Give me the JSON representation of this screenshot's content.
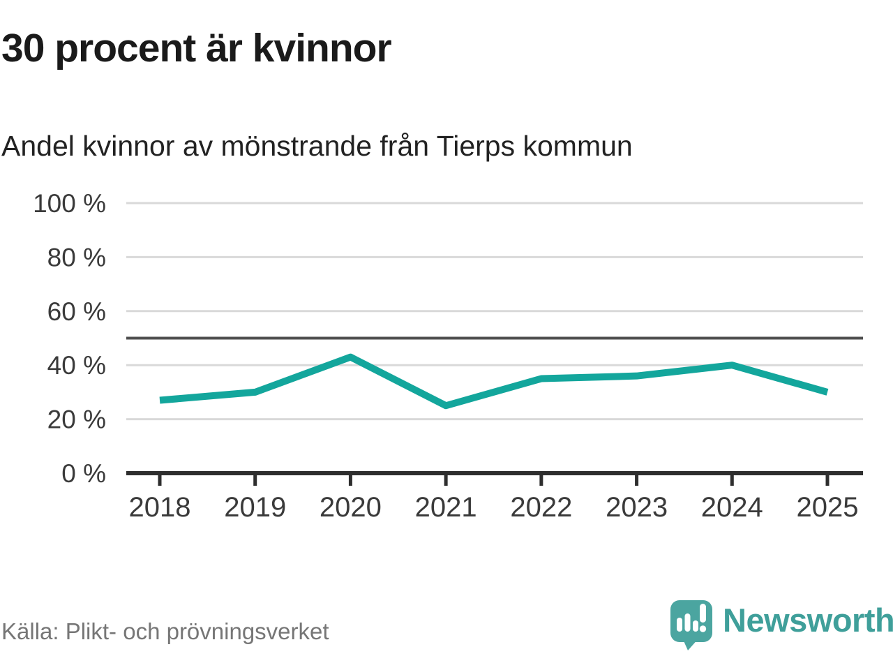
{
  "header": {
    "title": "30 procent är kvinnor",
    "subtitle": "Andel kvinnor av mönstrande från Tierps kommun"
  },
  "chart_data": {
    "type": "line",
    "title": "30 procent är kvinnor",
    "subtitle": "Andel kvinnor av mönstrande från Tierps kommun",
    "categories": [
      "2018",
      "2019",
      "2020",
      "2021",
      "2022",
      "2023",
      "2024",
      "2025"
    ],
    "series": [
      {
        "name": "Andel kvinnor av mönstrande",
        "values": [
          27,
          30,
          43,
          25,
          35,
          36,
          40,
          30
        ]
      }
    ],
    "unit": "%",
    "ylim": [
      0,
      100
    ],
    "yticks": [
      0,
      20,
      40,
      60,
      80,
      100
    ],
    "ytick_labels": [
      "0 %",
      "20 %",
      "40 %",
      "60 %",
      "80 %",
      "100 %"
    ],
    "reference_line": 50,
    "grid": true,
    "legend_position": "none",
    "colors": {
      "line": "#13a69c",
      "grid": "#d9d9d9",
      "reference": "#4f4f4f",
      "axis": "#2e2e2e",
      "tick_label": "#3a3a3a"
    }
  },
  "footer": {
    "source": "Källa: Plikt- och prövningsverket",
    "brand": "Newsworthy",
    "brand_color": "#3f9f9a",
    "logo_color": "#4ba5a0"
  }
}
